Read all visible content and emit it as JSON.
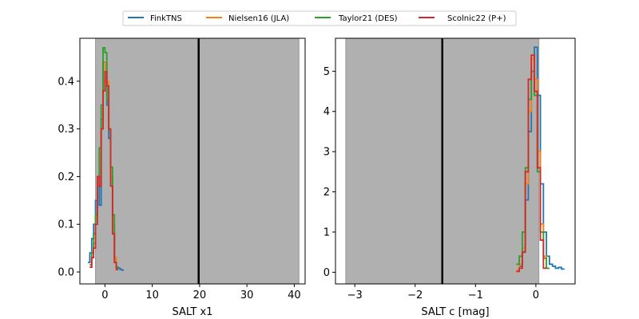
{
  "legend": {
    "placement": "top-center",
    "entries": [
      {
        "label": "FinkTNS",
        "color": "#1f77b4"
      },
      {
        "label": "Nielsen16 (JLA)",
        "color": "#ff7f0e"
      },
      {
        "label": "Taylor21 (DES)",
        "color": "#2ca02c"
      },
      {
        "label": "Scolnic22 (P+)",
        "color": "#d62728"
      }
    ]
  },
  "chart_data": [
    {
      "type": "histogram",
      "xlabel": "SALT x1",
      "ylabel": "",
      "xlim": [
        -5.3,
        42.3
      ],
      "ylim": [
        -0.025,
        0.49
      ],
      "xticks": [
        0,
        10,
        20,
        30,
        40
      ],
      "yticks": [
        0.0,
        0.1,
        0.2,
        0.3,
        0.4
      ],
      "ytick_labels": [
        "0.0",
        "0.1",
        "0.2",
        "0.3",
        "0.4"
      ],
      "grid": false,
      "shaded_region": {
        "x0": -2.0,
        "x1": 41.0,
        "color": "#b0b0b0"
      },
      "vline": {
        "x": 19.8,
        "color": "#000000"
      },
      "series": [
        {
          "name": "FinkTNS",
          "color": "#1f77b4",
          "x": [
            -3.4,
            -3.0,
            -2.6,
            -2.2,
            -1.8,
            -1.4,
            -1.0,
            -0.6,
            -0.2,
            0.2,
            0.6,
            1.0,
            1.4,
            1.8,
            2.2,
            2.6,
            3.0,
            3.4,
            3.8
          ],
          "y": [
            0.02,
            0.04,
            0.07,
            0.1,
            0.15,
            0.18,
            0.14,
            0.32,
            0.44,
            0.42,
            0.35,
            0.28,
            0.2,
            0.1,
            0.03,
            0.01,
            0.008,
            0.005,
            0.004
          ]
        },
        {
          "name": "Nielsen16 (JLA)",
          "color": "#ff7f0e",
          "x": [
            -3.0,
            -2.6,
            -2.2,
            -1.8,
            -1.4,
            -1.0,
            -0.6,
            -0.2,
            0.2,
            0.6,
            1.0,
            1.4,
            1.8,
            2.2,
            2.6
          ],
          "y": [
            0.01,
            0.03,
            0.06,
            0.12,
            0.2,
            0.23,
            0.3,
            0.4,
            0.44,
            0.4,
            0.3,
            0.2,
            0.1,
            0.03,
            0.01
          ]
        },
        {
          "name": "Taylor21 (DES)",
          "color": "#2ca02c",
          "x": [
            -3.0,
            -2.6,
            -2.2,
            -1.8,
            -1.4,
            -1.0,
            -0.6,
            -0.2,
            0.2,
            0.6,
            1.0,
            1.4,
            1.8,
            2.2,
            2.6
          ],
          "y": [
            0.015,
            0.04,
            0.08,
            0.12,
            0.18,
            0.26,
            0.35,
            0.47,
            0.46,
            0.36,
            0.3,
            0.22,
            0.12,
            0.02,
            0.01
          ]
        },
        {
          "name": "Scolnic22 (P+)",
          "color": "#d62728",
          "x": [
            -3.0,
            -2.6,
            -2.2,
            -1.8,
            -1.4,
            -1.0,
            -0.6,
            -0.2,
            0.2,
            0.6,
            1.0,
            1.4,
            1.8,
            2.2,
            2.6
          ],
          "y": [
            0.01,
            0.03,
            0.05,
            0.1,
            0.2,
            0.18,
            0.3,
            0.38,
            0.42,
            0.39,
            0.3,
            0.18,
            0.08,
            0.02,
            0.005
          ]
        }
      ]
    },
    {
      "type": "histogram",
      "xlabel": "SALT c [mag]",
      "ylabel": "",
      "xlim": [
        -3.32,
        0.65
      ],
      "ylim": [
        -0.29,
        5.82
      ],
      "xticks": [
        -3,
        -2,
        -1,
        0
      ],
      "xtick_labels": [
        "−3",
        "−2",
        "−1",
        "0"
      ],
      "yticks": [
        0,
        1,
        2,
        3,
        4,
        5
      ],
      "ytick_labels": [
        "0",
        "1",
        "2",
        "3",
        "4",
        "5"
      ],
      "grid": false,
      "shaded_region": {
        "x0": -3.15,
        "x1": 0.05,
        "color": "#b0b0b0"
      },
      "vline": {
        "x": -1.55,
        "color": "#000000"
      },
      "series": [
        {
          "name": "FinkTNS",
          "color": "#1f77b4",
          "x": [
            -0.3,
            -0.25,
            -0.2,
            -0.15,
            -0.1,
            -0.05,
            0.0,
            0.05,
            0.1,
            0.15,
            0.2,
            0.25,
            0.3,
            0.35,
            0.4,
            0.45
          ],
          "y": [
            0.05,
            0.15,
            0.5,
            1.8,
            3.5,
            5.0,
            5.6,
            4.4,
            2.2,
            1.0,
            0.4,
            0.2,
            0.15,
            0.1,
            0.12,
            0.08
          ]
        },
        {
          "name": "Nielsen16 (JLA)",
          "color": "#ff7f0e",
          "x": [
            -0.3,
            -0.25,
            -0.2,
            -0.15,
            -0.1,
            -0.05,
            0.0,
            0.05,
            0.1,
            0.15,
            0.2
          ],
          "y": [
            0.05,
            0.2,
            0.6,
            2.2,
            4.0,
            5.3,
            4.8,
            3.0,
            1.2,
            0.4,
            0.1
          ]
        },
        {
          "name": "Taylor21 (DES)",
          "color": "#2ca02c",
          "x": [
            -0.3,
            -0.25,
            -0.2,
            -0.15,
            -0.1,
            -0.05,
            0.0,
            0.05,
            0.1,
            0.15,
            0.2
          ],
          "y": [
            0.2,
            0.4,
            1.0,
            2.6,
            4.3,
            5.0,
            4.4,
            2.5,
            1.0,
            0.35,
            0.1
          ]
        },
        {
          "name": "Scolnic22 (P+)",
          "color": "#d62728",
          "x": [
            -0.3,
            -0.25,
            -0.2,
            -0.15,
            -0.1,
            -0.05,
            0.0,
            0.05,
            0.1,
            0.15
          ],
          "y": [
            0.02,
            0.1,
            0.5,
            2.5,
            4.8,
            5.4,
            4.5,
            2.6,
            0.8,
            0.1
          ]
        }
      ]
    }
  ]
}
